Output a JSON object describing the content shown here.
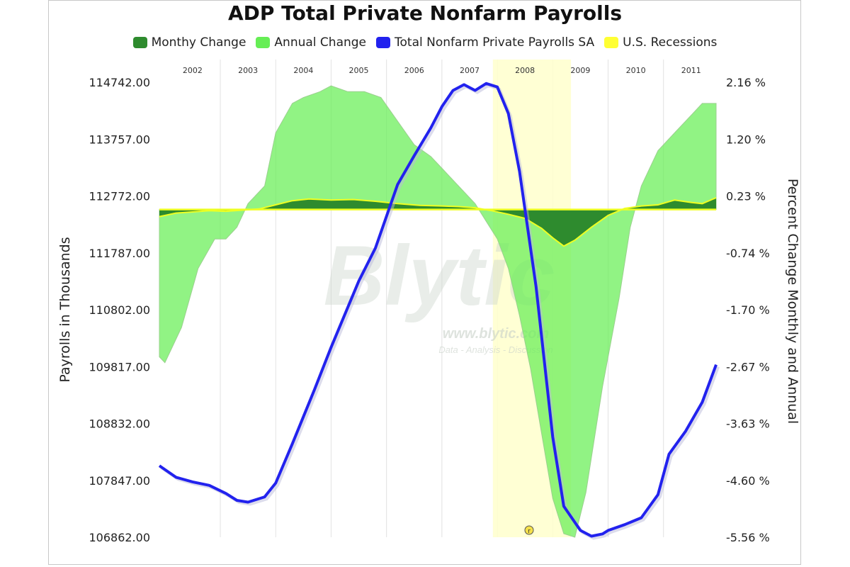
{
  "chart_data": {
    "type": "area",
    "title": "ADP Total Private Nonfarm Payrolls",
    "ylabel_left": "Payrolls in Thousands",
    "ylabel_right": "Percent Change Monthly and Annual",
    "watermark": "Blytic",
    "watermark_url": "www.blytic.com",
    "watermark_tagline": "Data - Analysis - Discussion",
    "x_axis": {
      "start": 2001.9,
      "end": 2011.95,
      "year_labels": [
        "2002",
        "2003",
        "2004",
        "2005",
        "2006",
        "2007",
        "2008",
        "2009",
        "2010",
        "2011"
      ]
    },
    "y_left": {
      "min": 106862.0,
      "max": 114742.0,
      "ticks": [
        "114742.00",
        "113757.00",
        "112772.00",
        "111787.00",
        "110802.00",
        "109817.00",
        "108832.00",
        "107847.00",
        "106862.00"
      ]
    },
    "y_right": {
      "min": -5.56,
      "max": 2.16,
      "ticks": [
        "2.16 %",
        "1.20 %",
        "0.23 %",
        "-0.74 %",
        "-1.70 %",
        "-2.67 %",
        "-3.63 %",
        "-4.60 %",
        "-5.56 %"
      ]
    },
    "legend": [
      {
        "label": "Monthy Change",
        "color": "#2e8b2e"
      },
      {
        "label": "Annual Change",
        "color": "#66ee55"
      },
      {
        "label": "Total Nonfarm Private Payrolls SA",
        "color": "#2222ee"
      },
      {
        "label": "U.S. Recessions",
        "color": "#ffff33"
      }
    ],
    "recessions": [
      {
        "start": 2007.92,
        "end": 2009.33
      }
    ],
    "series": [
      {
        "name": "Total Nonfarm Private Payrolls SA",
        "axis": "left",
        "color": "#2222ee",
        "x": [
          2001.9,
          2002.2,
          2002.5,
          2002.8,
          2003.1,
          2003.3,
          2003.5,
          2003.8,
          2004.0,
          2004.3,
          2004.7,
          2005.0,
          2005.5,
          2005.8,
          2006.2,
          2006.5,
          2006.8,
          2007.0,
          2007.2,
          2007.4,
          2007.6,
          2007.8,
          2008.0,
          2008.2,
          2008.4,
          2008.7,
          2009.0,
          2009.2,
          2009.5,
          2009.7,
          2009.9,
          2010.0,
          2010.3,
          2010.6,
          2010.9,
          2011.1,
          2011.4,
          2011.7,
          2011.95
        ],
        "values": [
          108100,
          107900,
          107820,
          107760,
          107620,
          107500,
          107470,
          107560,
          107800,
          108480,
          109420,
          110150,
          111300,
          111870,
          112970,
          113470,
          113950,
          114320,
          114600,
          114700,
          114600,
          114720,
          114660,
          114200,
          113200,
          111200,
          108600,
          107400,
          106980,
          106880,
          106920,
          106980,
          107080,
          107200,
          107600,
          108300,
          108700,
          109200,
          109850
        ]
      },
      {
        "name": "Annual Change",
        "axis": "right",
        "color": "#66ee55",
        "x": [
          2001.9,
          2002.0,
          2002.3,
          2002.6,
          2002.9,
          2003.1,
          2003.3,
          2003.5,
          2003.8,
          2004.0,
          2004.3,
          2004.5,
          2004.8,
          2005.0,
          2005.3,
          2005.6,
          2005.9,
          2006.2,
          2006.5,
          2006.8,
          2007.0,
          2007.3,
          2007.6,
          2007.8,
          2008.0,
          2008.2,
          2008.4,
          2008.6,
          2008.8,
          2009.0,
          2009.2,
          2009.4,
          2009.6,
          2009.9,
          2010.2,
          2010.4,
          2010.6,
          2010.9,
          2011.2,
          2011.5,
          2011.7,
          2011.95
        ],
        "values": [
          -2.5,
          -2.6,
          -2.0,
          -1.0,
          -0.5,
          -0.5,
          -0.3,
          0.1,
          0.4,
          1.3,
          1.8,
          1.9,
          2.0,
          2.1,
          2.0,
          2.0,
          1.9,
          1.5,
          1.1,
          0.9,
          0.7,
          0.4,
          0.1,
          -0.2,
          -0.5,
          -1.0,
          -1.8,
          -2.7,
          -3.8,
          -4.9,
          -5.5,
          -5.56,
          -4.8,
          -3.0,
          -1.5,
          -0.3,
          0.4,
          1.0,
          1.3,
          1.6,
          1.8,
          1.8
        ]
      },
      {
        "name": "Monthy Change",
        "axis": "right",
        "color": "#2e8b2e",
        "x": [
          2001.9,
          2002.2,
          2002.5,
          2002.8,
          2003.1,
          2003.4,
          2003.7,
          2004.0,
          2004.3,
          2004.6,
          2005.0,
          2005.4,
          2005.8,
          2006.2,
          2006.6,
          2007.0,
          2007.3,
          2007.6,
          2007.9,
          2008.2,
          2008.5,
          2008.8,
          2009.0,
          2009.2,
          2009.4,
          2009.7,
          2010.0,
          2010.3,
          2010.6,
          2010.9,
          2011.2,
          2011.5,
          2011.7,
          2011.95
        ],
        "values": [
          -0.12,
          -0.06,
          -0.04,
          -0.02,
          -0.03,
          -0.01,
          0.01,
          0.08,
          0.15,
          0.18,
          0.16,
          0.17,
          0.14,
          0.1,
          0.07,
          0.06,
          0.05,
          0.03,
          -0.02,
          -0.08,
          -0.15,
          -0.32,
          -0.48,
          -0.62,
          -0.52,
          -0.3,
          -0.1,
          0.02,
          0.06,
          0.08,
          0.16,
          0.12,
          0.1,
          0.2
        ]
      }
    ]
  }
}
